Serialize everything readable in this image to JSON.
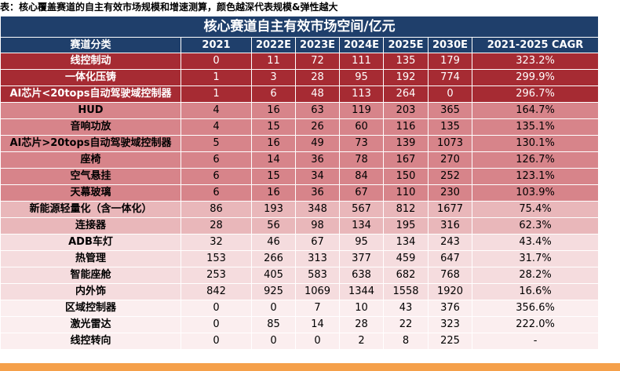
{
  "caption": "表：核心覆盖赛道的自主有效市场规模和增速测算，颜色越深代表规模&弹性越大",
  "table": {
    "title": "核心赛道自主有效市场空间/亿元",
    "headers": [
      "赛道分类",
      "2021",
      "2022E",
      "2023E",
      "2024E",
      "2025E",
      "2030E",
      "2021-2025 CAGR"
    ],
    "rows": [
      {
        "tier": "t1",
        "cells": [
          "线控制动",
          "0",
          "11",
          "72",
          "111",
          "135",
          "179",
          "323.2%"
        ]
      },
      {
        "tier": "t1",
        "cells": [
          "一体化压铸",
          "1",
          "3",
          "28",
          "95",
          "192",
          "774",
          "299.9%"
        ]
      },
      {
        "tier": "t1",
        "cells": [
          "AI芯片<20tops自动驾驶域控制器",
          "1",
          "6",
          "48",
          "113",
          "264",
          "0",
          "296.7%"
        ]
      },
      {
        "tier": "t2",
        "cells": [
          "HUD",
          "4",
          "16",
          "63",
          "119",
          "203",
          "365",
          "164.7%"
        ]
      },
      {
        "tier": "t2",
        "cells": [
          "音响功放",
          "4",
          "15",
          "26",
          "60",
          "116",
          "135",
          "135.1%"
        ]
      },
      {
        "tier": "t2",
        "cells": [
          "AI芯片>20tops自动驾驶域控制器",
          "5",
          "16",
          "49",
          "73",
          "139",
          "1073",
          "130.1%"
        ]
      },
      {
        "tier": "t2",
        "cells": [
          "座椅",
          "6",
          "14",
          "36",
          "78",
          "167",
          "270",
          "126.7%"
        ]
      },
      {
        "tier": "t2",
        "cells": [
          "空气悬挂",
          "6",
          "15",
          "34",
          "84",
          "150",
          "252",
          "123.1%"
        ]
      },
      {
        "tier": "t2",
        "cells": [
          "天幕玻璃",
          "6",
          "16",
          "36",
          "67",
          "110",
          "230",
          "103.9%"
        ]
      },
      {
        "tier": "t3",
        "cells": [
          "新能源轻量化（含一体化）",
          "86",
          "193",
          "348",
          "567",
          "812",
          "1677",
          "75.4%"
        ]
      },
      {
        "tier": "t3",
        "cells": [
          "连接器",
          "28",
          "56",
          "98",
          "134",
          "195",
          "316",
          "62.3%"
        ]
      },
      {
        "tier": "t4",
        "cells": [
          "ADB车灯",
          "32",
          "46",
          "67",
          "95",
          "134",
          "243",
          "43.4%"
        ]
      },
      {
        "tier": "t4",
        "cells": [
          "热管理",
          "153",
          "266",
          "313",
          "377",
          "459",
          "647",
          "31.7%"
        ]
      },
      {
        "tier": "t4",
        "cells": [
          "智能座舱",
          "253",
          "405",
          "583",
          "638",
          "682",
          "768",
          "28.2%"
        ]
      },
      {
        "tier": "t4",
        "cells": [
          "内外饰",
          "842",
          "925",
          "1069",
          "1344",
          "1558",
          "1920",
          "16.6%"
        ]
      },
      {
        "tier": "t5",
        "cells": [
          "区域控制器",
          "0",
          "0",
          "7",
          "10",
          "43",
          "376",
          "356.6%"
        ]
      },
      {
        "tier": "t5",
        "cells": [
          "激光雷达",
          "0",
          "85",
          "14",
          "28",
          "22",
          "323",
          "222.0%"
        ]
      },
      {
        "tier": "t5",
        "cells": [
          "线控转向",
          "0",
          "0",
          "0",
          "2",
          "8",
          "225",
          "-"
        ]
      }
    ]
  }
}
